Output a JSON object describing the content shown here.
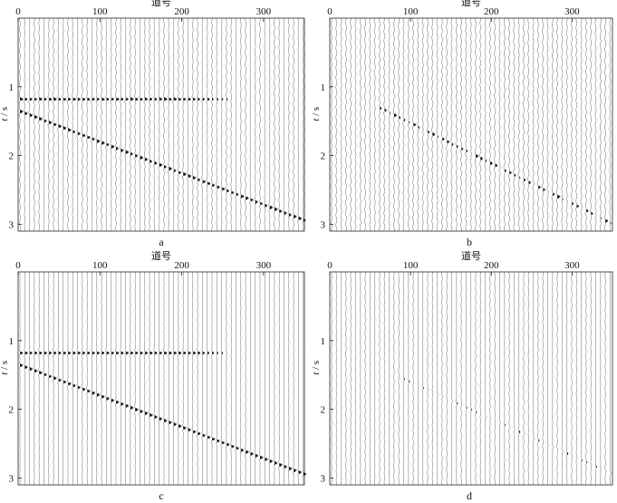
{
  "chart_data": [
    {
      "type": "seismic-wiggle",
      "panel_label": "a",
      "xlabel": "道号",
      "ylabel_italic": "t",
      "ylabel_unit": "/ s",
      "xlim": [
        0,
        350
      ],
      "ylim": [
        0,
        3.1
      ],
      "xticks": [
        0,
        100,
        200,
        300
      ],
      "yticks": [
        1,
        2,
        3
      ],
      "events": [
        {
          "kind": "flat",
          "x_start": 0,
          "x_end": 270,
          "t": 1.18,
          "strength": 1.0,
          "taper_from": 215
        },
        {
          "kind": "dipping",
          "x_start": 0,
          "x_end": 350,
          "t_start": 1.35,
          "t_end": 2.95,
          "strength": 0.95,
          "noisy": false
        }
      ],
      "noise_level": 0.12
    },
    {
      "type": "seismic-wiggle",
      "panel_label": "b",
      "xlabel": "道号",
      "ylabel_italic": "t",
      "ylabel_unit": "/ s",
      "xlim": [
        0,
        350
      ],
      "ylim": [
        0,
        3.1
      ],
      "xticks": [
        0,
        100,
        200,
        300
      ],
      "yticks": [
        1,
        2,
        3
      ],
      "events": [
        {
          "kind": "dipping",
          "x_start": 60,
          "x_end": 350,
          "t_start": 1.3,
          "t_end": 3.0,
          "strength": 0.8,
          "noisy": true
        }
      ],
      "noise_level": 0.18
    },
    {
      "type": "seismic-wiggle",
      "panel_label": "c",
      "xlabel": "道号",
      "ylabel_italic": "t",
      "ylabel_unit": "/ s",
      "xlim": [
        0,
        350
      ],
      "ylim": [
        0,
        3.1
      ],
      "xticks": [
        0,
        100,
        200,
        300
      ],
      "yticks": [
        1,
        2,
        3
      ],
      "events": [
        {
          "kind": "flat",
          "x_start": 0,
          "x_end": 270,
          "t": 1.18,
          "strength": 1.0,
          "taper_from": 215
        },
        {
          "kind": "dipping",
          "x_start": 0,
          "x_end": 350,
          "t_start": 1.35,
          "t_end": 2.95,
          "strength": 1.0,
          "noisy": false
        }
      ],
      "noise_level": 0.04
    },
    {
      "type": "seismic-wiggle",
      "panel_label": "d",
      "xlabel": "道号",
      "ylabel_italic": "t",
      "ylabel_unit": "/ s",
      "xlim": [
        0,
        350
      ],
      "ylim": [
        0,
        3.1
      ],
      "xticks": [
        0,
        100,
        200,
        300
      ],
      "yticks": [
        1,
        2,
        3
      ],
      "events": [
        {
          "kind": "dipping",
          "x_start": 80,
          "x_end": 350,
          "t_start": 1.5,
          "t_end": 2.95,
          "strength": 0.45,
          "noisy": true
        }
      ],
      "noise_level": 0.08
    }
  ]
}
